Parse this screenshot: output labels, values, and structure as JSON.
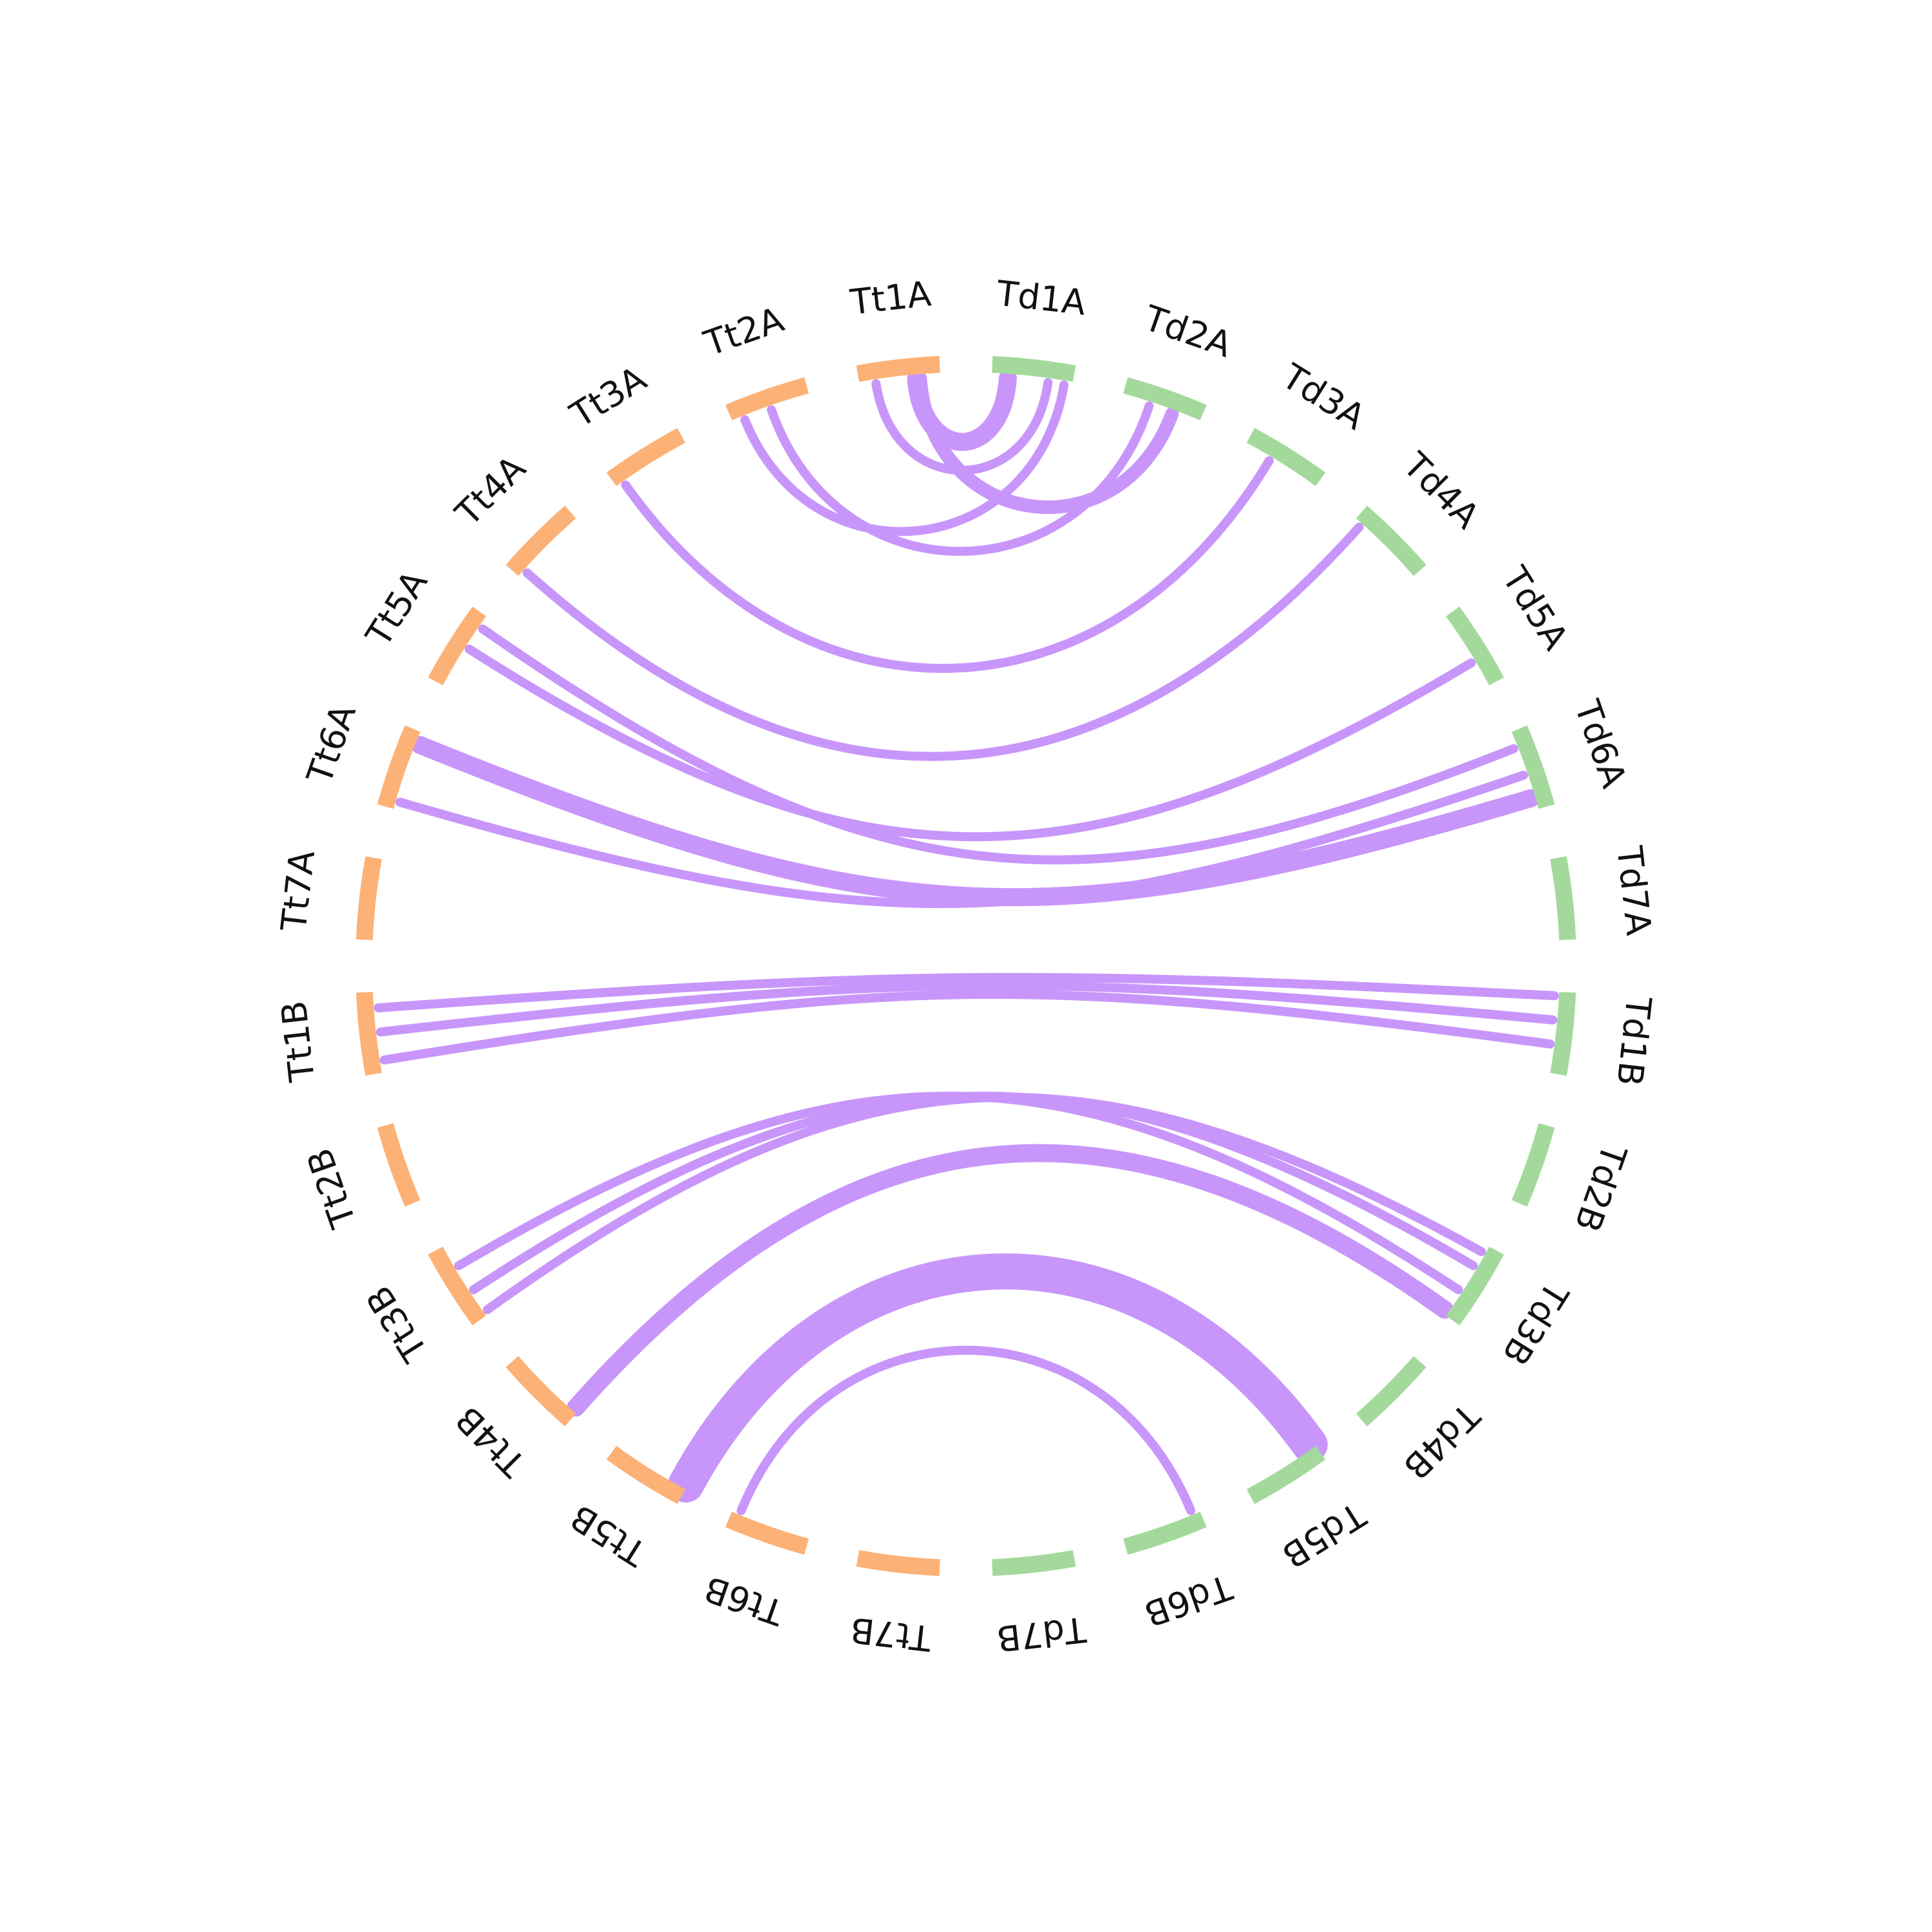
{
  "chart_data": {
    "type": "chord",
    "title": "",
    "colors": {
      "Td": "#a3d99b",
      "Tt": "#fcb176",
      "link": "#c896fa"
    },
    "sectors": [
      {
        "name": "Td1A",
        "group": "Td"
      },
      {
        "name": "Td2A",
        "group": "Td"
      },
      {
        "name": "Td3A",
        "group": "Td"
      },
      {
        "name": "Td4A",
        "group": "Td"
      },
      {
        "name": "Td5A",
        "group": "Td"
      },
      {
        "name": "Td6A",
        "group": "Td"
      },
      {
        "name": "Td7A",
        "group": "Td"
      },
      {
        "name": "Td1B",
        "group": "Td"
      },
      {
        "name": "Td2B",
        "group": "Td"
      },
      {
        "name": "Td3B",
        "group": "Td"
      },
      {
        "name": "Td4B",
        "group": "Td"
      },
      {
        "name": "Td5B",
        "group": "Td"
      },
      {
        "name": "Td6B",
        "group": "Td"
      },
      {
        "name": "Td7B",
        "group": "Td"
      },
      {
        "name": "Tt7B",
        "group": "Tt"
      },
      {
        "name": "Tt6B",
        "group": "Tt"
      },
      {
        "name": "Tt5B",
        "group": "Tt"
      },
      {
        "name": "Tt4B",
        "group": "Tt"
      },
      {
        "name": "Tt3B",
        "group": "Tt"
      },
      {
        "name": "Tt2B",
        "group": "Tt"
      },
      {
        "name": "Tt1B",
        "group": "Tt"
      },
      {
        "name": "Tt7A",
        "group": "Tt"
      },
      {
        "name": "Tt6A",
        "group": "Tt"
      },
      {
        "name": "Tt5A",
        "group": "Tt"
      },
      {
        "name": "Tt4A",
        "group": "Tt"
      },
      {
        "name": "Tt3A",
        "group": "Tt"
      },
      {
        "name": "Tt2A",
        "group": "Tt"
      },
      {
        "name": "Tt1A",
        "group": "Tt"
      }
    ],
    "links": [
      {
        "from": "Td1A",
        "from_pos": 0.7,
        "to": "Tt1A",
        "to_pos": 0.2,
        "weight": 1
      },
      {
        "from": "Td1A",
        "from_pos": 0.2,
        "to": "Tt1A",
        "to_pos": 0.7,
        "weight": 3
      },
      {
        "from": "Td1A",
        "from_pos": 0.9,
        "to": "Tt2A",
        "to_pos": 0.15,
        "weight": 1
      },
      {
        "from": "Td2A",
        "from_pos": 0.65,
        "to": "Tt1A",
        "to_pos": 0.75,
        "weight": 2
      },
      {
        "from": "Td2A",
        "from_pos": 0.35,
        "to": "Tt2A",
        "to_pos": 0.5,
        "weight": 1
      },
      {
        "from": "Td3A",
        "from_pos": 0.35,
        "to": "Tt3A",
        "to_pos": 0.1,
        "weight": 1
      },
      {
        "from": "Td4A",
        "from_pos": 0.1,
        "to": "Tt4A",
        "to_pos": 0.1,
        "weight": 1
      },
      {
        "from": "Td5A",
        "from_pos": 0.65,
        "to": "Tt5A",
        "to_pos": 0.55,
        "weight": 1
      },
      {
        "from": "Td6A",
        "from_pos": 0.2,
        "to": "Tt5A",
        "to_pos": 0.85,
        "weight": 1
      },
      {
        "from": "Td6A",
        "from_pos": 0.55,
        "to": "Tt6A",
        "to_pos": 0.1,
        "weight": 1
      },
      {
        "from": "Td6A",
        "from_pos": 0.85,
        "to": "Tt6A",
        "to_pos": 0.85,
        "weight": 3
      },
      {
        "from": "Td1B",
        "from_pos": 0.05,
        "to": "Tt1B",
        "to_pos": 0.8,
        "weight": 1
      },
      {
        "from": "Td1B",
        "from_pos": 0.35,
        "to": "Tt1B",
        "to_pos": 0.5,
        "weight": 1
      },
      {
        "from": "Td1B",
        "from_pos": 0.65,
        "to": "Tt1B",
        "to_pos": 0.15,
        "weight": 1
      },
      {
        "from": "Td3B",
        "from_pos": 0.1,
        "to": "Tt3B",
        "to_pos": 0.05,
        "weight": 1
      },
      {
        "from": "Td3B",
        "from_pos": 0.3,
        "to": "Tt3B",
        "to_pos": 0.35,
        "weight": 1
      },
      {
        "from": "Td3B",
        "from_pos": 0.65,
        "to": "Tt3B",
        "to_pos": 0.7,
        "weight": 1
      },
      {
        "from": "Td3B",
        "from_pos": 0.95,
        "to": "Tt4B",
        "to_pos": 0.05,
        "weight": 3
      },
      {
        "from": "Td5B",
        "from_pos": 0.05,
        "to": "Tt5B",
        "to_pos": 0.02,
        "weight": 7
      },
      {
        "from": "Td6B",
        "from_pos": 0.1,
        "to": "Tt6B",
        "to_pos": 0.9,
        "weight": 1
      }
    ]
  }
}
